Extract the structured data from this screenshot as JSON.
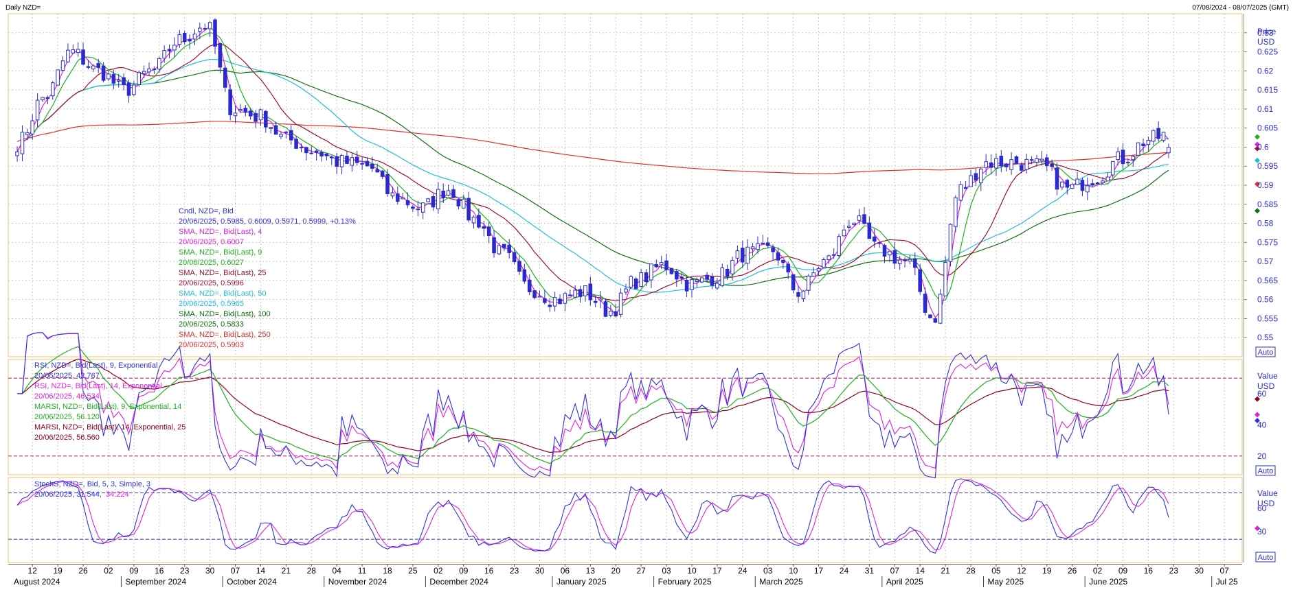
{
  "header": {
    "title": "Daily NZD=",
    "date_range": "07/08/2024 - 08/07/2025 (GMT)"
  },
  "colors": {
    "candle": "#2b2bcc",
    "sma4": "#e020e0",
    "sma9": "#20b020",
    "sma25": "#a01030",
    "sma50": "#20c0d8",
    "sma100": "#107010",
    "sma250": "#e03030",
    "rsi9": "#3030e0",
    "rsi14": "#e020e0",
    "marsi9": "#20b020",
    "marsi14": "#900020",
    "stoch_k": "#3030e0",
    "stoch_d": "#e020e0",
    "grid": "#c8c8c8",
    "panel_border": "#f0c070",
    "axis_text": "#2a2ad0"
  },
  "price_panel": {
    "axis_title": "Price",
    "axis_unit": "USD",
    "auto_label": "Auto",
    "ticks": [
      "0.63",
      "0.625",
      "0.62",
      "0.615",
      "0.61",
      "0.605",
      "0.6",
      "0.595",
      "0.59",
      "0.585",
      "0.58",
      "0.575",
      "0.57",
      "0.565",
      "0.56",
      "0.555",
      "0.55"
    ],
    "legend": [
      {
        "text": "Cndl, NZD=, Bid",
        "color": "#3030e0"
      },
      {
        "text": "20/06/2025, 0.5985, 0.6009, 0.5971, 0.5999, +0.13%",
        "color": "#3030e0"
      },
      {
        "text": "SMA, NZD=, Bid(Last), 4",
        "color": "#e020e0"
      },
      {
        "text": "20/06/2025, 0.6007",
        "color": "#e020e0"
      },
      {
        "text": "SMA, NZD=, Bid(Last), 9",
        "color": "#20b020"
      },
      {
        "text": "20/06/2025, 0.6027",
        "color": "#20b020"
      },
      {
        "text": "SMA, NZD=, Bid(Last), 25",
        "color": "#a01030"
      },
      {
        "text": "20/06/2025, 0.5996",
        "color": "#a01030"
      },
      {
        "text": "SMA, NZD=, Bid(Last), 50",
        "color": "#20c0d8"
      },
      {
        "text": "20/06/2025, 0.5965",
        "color": "#20c0d8"
      },
      {
        "text": "SMA, NZD=, Bid(Last), 100",
        "color": "#107010"
      },
      {
        "text": "20/06/2025, 0.5833",
        "color": "#107010"
      },
      {
        "text": "SMA, NZD=, Bid(Last), 250",
        "color": "#e03030"
      },
      {
        "text": "20/06/2025, 0.5903",
        "color": "#e03030"
      }
    ]
  },
  "rsi_panel": {
    "axis_title": "Value",
    "axis_unit": "USD",
    "auto_label": "Auto",
    "ticks": [
      "60",
      "40",
      "20"
    ],
    "legend": [
      {
        "text": "RSI, NZD=, Bid(Last), 9, Exponential",
        "color": "#3030e0"
      },
      {
        "text": "20/06/2025, 42.767",
        "color": "#3030e0"
      },
      {
        "text": "RSI, NZD=, Bid(Last), 14, Exponential",
        "color": "#e020e0"
      },
      {
        "text": "20/06/2025, 46.534",
        "color": "#e020e0"
      },
      {
        "text": "MARSI, NZD=, Bid(Last), 9, Exponential, 14",
        "color": "#20b020"
      },
      {
        "text": "20/06/2025, 56.120",
        "color": "#20b020"
      },
      {
        "text": "MARSI, NZD=, Bid(Last), 14, Exponential, 25",
        "color": "#900020"
      },
      {
        "text": "20/06/2025, 56.560",
        "color": "#900020"
      }
    ]
  },
  "stoch_panel": {
    "axis_title": "Value",
    "axis_unit": "USD",
    "auto_label": "Auto",
    "ticks": [
      "60",
      "30"
    ],
    "legend": [
      {
        "text": "StochS, NZD=, Bid, 5, 3, Simple, 3",
        "color": "#3030e0"
      }
    ],
    "legend_value_prefix": "20/06/2025, 31.544,",
    "legend_value_suffix": "34.224"
  },
  "x_axis": {
    "day_ticks": [
      "12",
      "19",
      "26",
      "02",
      "09",
      "16",
      "23",
      "30",
      "07",
      "14",
      "21",
      "28",
      "04",
      "11",
      "18",
      "25",
      "02",
      "09",
      "16",
      "23",
      "30",
      "06",
      "13",
      "20",
      "27",
      "03",
      "10",
      "17",
      "24",
      "03",
      "10",
      "17",
      "24",
      "31",
      "07",
      "14",
      "21",
      "28",
      "05",
      "12",
      "19",
      "26",
      "02",
      "09",
      "16",
      "23",
      "30",
      "07"
    ],
    "months": [
      "August 2024",
      "September 2024",
      "October 2024",
      "November 2024",
      "December 2024",
      "January 2025",
      "February 2025",
      "March 2025",
      "April 2025",
      "May 2025",
      "June 2025",
      "Jul 25"
    ]
  },
  "chart_data": {
    "type": "candlestick",
    "title": "Daily NZD=",
    "price_ylim": [
      0.545,
      0.635
    ],
    "rsi_ylim": [
      8,
      82
    ],
    "rsi_levels": [
      70,
      20
    ],
    "stoch_ylim": [
      -10,
      100
    ],
    "stoch_levels": [
      80,
      20
    ],
    "series_names": [
      "Cndl, NZD=, Bid",
      "SMA 4",
      "SMA 9",
      "SMA 25",
      "SMA 50",
      "SMA 100",
      "SMA 250",
      "RSI 9",
      "RSI 14",
      "MARSI 9",
      "MARSI 14",
      "StochS %K",
      "StochS %D"
    ],
    "weekly_anchors": [
      {
        "week": "2024-08-12",
        "close": 0.601
      },
      {
        "week": "2024-08-19",
        "close": 0.613
      },
      {
        "week": "2024-08-26",
        "close": 0.625
      },
      {
        "week": "2024-09-02",
        "close": 0.62
      },
      {
        "week": "2024-09-09",
        "close": 0.615
      },
      {
        "week": "2024-09-16",
        "close": 0.62
      },
      {
        "week": "2024-09-23",
        "close": 0.628
      },
      {
        "week": "2024-09-30",
        "close": 0.632
      },
      {
        "week": "2024-10-07",
        "close": 0.61
      },
      {
        "week": "2024-10-14",
        "close": 0.608
      },
      {
        "week": "2024-10-21",
        "close": 0.602
      },
      {
        "week": "2024-10-28",
        "close": 0.599
      },
      {
        "week": "2024-11-04",
        "close": 0.596
      },
      {
        "week": "2024-11-11",
        "close": 0.595
      },
      {
        "week": "2024-11-18",
        "close": 0.587
      },
      {
        "week": "2024-11-25",
        "close": 0.584
      },
      {
        "week": "2024-12-02",
        "close": 0.589
      },
      {
        "week": "2024-12-09",
        "close": 0.581
      },
      {
        "week": "2024-12-16",
        "close": 0.572
      },
      {
        "week": "2024-12-23",
        "close": 0.563
      },
      {
        "week": "2024-12-30",
        "close": 0.56
      },
      {
        "week": "2025-01-06",
        "close": 0.562
      },
      {
        "week": "2025-01-13",
        "close": 0.557
      },
      {
        "week": "2025-01-20",
        "close": 0.565
      },
      {
        "week": "2025-01-27",
        "close": 0.569
      },
      {
        "week": "2025-02-03",
        "close": 0.564
      },
      {
        "week": "2025-02-10",
        "close": 0.566
      },
      {
        "week": "2025-02-17",
        "close": 0.572
      },
      {
        "week": "2025-02-24",
        "close": 0.573
      },
      {
        "week": "2025-03-03",
        "close": 0.562
      },
      {
        "week": "2025-03-10",
        "close": 0.57
      },
      {
        "week": "2025-03-17",
        "close": 0.581
      },
      {
        "week": "2025-03-24",
        "close": 0.573
      },
      {
        "week": "2025-03-31",
        "close": 0.57
      },
      {
        "week": "2025-04-07",
        "close": 0.555
      },
      {
        "week": "2025-04-14",
        "close": 0.589
      },
      {
        "week": "2025-04-21",
        "close": 0.596
      },
      {
        "week": "2025-04-28",
        "close": 0.596
      },
      {
        "week": "2025-05-05",
        "close": 0.595
      },
      {
        "week": "2025-05-12",
        "close": 0.589
      },
      {
        "week": "2025-05-19",
        "close": 0.592
      },
      {
        "week": "2025-05-26",
        "close": 0.597
      },
      {
        "week": "2025-06-02",
        "close": 0.602
      },
      {
        "week": "2025-06-09",
        "close": 0.604
      },
      {
        "week": "2025-06-16",
        "close": 0.603
      },
      {
        "week": "2025-06-20",
        "close": 0.5999
      }
    ],
    "last_bar": {
      "date": "20/06/2025",
      "open": 0.5985,
      "high": 0.6009,
      "low": 0.5971,
      "close": 0.5999,
      "change": "+0.13%"
    },
    "last_values": {
      "sma4": 0.6007,
      "sma9": 0.6027,
      "sma25": 0.5996,
      "sma50": 0.5965,
      "sma100": 0.5833,
      "sma250": 0.5903,
      "rsi9": 42.767,
      "rsi14": 46.534,
      "marsi9": 56.12,
      "marsi14": 56.56,
      "stoch_k": 31.544,
      "stoch_d": 34.224
    }
  }
}
